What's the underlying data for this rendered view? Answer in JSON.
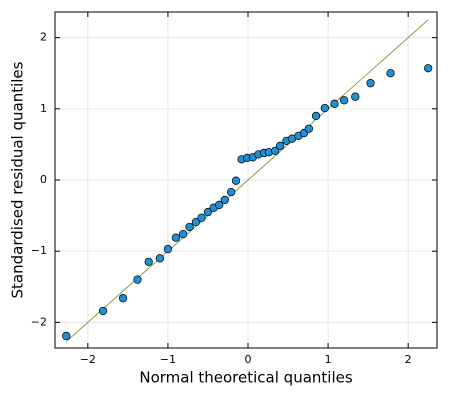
{
  "chart_data": {
    "type": "scatter",
    "xlabel": "Normal theoretical quantiles",
    "ylabel": "Standardised residual quantiles",
    "x": [
      -2.27,
      -1.81,
      -1.56,
      -1.38,
      -1.24,
      -1.1,
      -1.0,
      -0.9,
      -0.81,
      -0.73,
      -0.65,
      -0.58,
      -0.5,
      -0.43,
      -0.36,
      -0.29,
      -0.21,
      -0.15,
      -0.08,
      -0.01,
      0.06,
      0.13,
      0.2,
      0.26,
      0.34,
      0.4,
      0.48,
      0.55,
      0.63,
      0.7,
      0.76,
      0.85,
      0.96,
      1.08,
      1.2,
      1.34,
      1.53,
      1.78,
      2.25
    ],
    "values": [
      -2.19,
      -1.84,
      -1.66,
      -1.4,
      -1.15,
      -1.1,
      -0.97,
      -0.81,
      -0.76,
      -0.66,
      -0.59,
      -0.53,
      -0.45,
      -0.39,
      -0.35,
      -0.28,
      -0.17,
      -0.01,
      0.29,
      0.31,
      0.32,
      0.36,
      0.38,
      0.39,
      0.41,
      0.48,
      0.55,
      0.58,
      0.62,
      0.66,
      0.72,
      0.9,
      1.01,
      1.07,
      1.12,
      1.17,
      1.36,
      1.5,
      1.57
    ],
    "color": "#1f8fd6",
    "ref_line": {
      "x": [
        -2.27,
        2.25
      ],
      "values": [
        -2.27,
        2.25
      ],
      "color": "#6b8e23"
    },
    "xlim": [
      -2.41,
      2.36
    ],
    "ylim": [
      -2.36,
      2.36
    ],
    "xticks": [
      {
        "value": -2,
        "label": "−2"
      },
      {
        "value": -1,
        "label": "−1"
      },
      0,
      1,
      2
    ],
    "yticks": [
      {
        "value": -2,
        "label": "−2"
      },
      {
        "value": -1,
        "label": "−1"
      },
      0,
      1,
      2
    ],
    "grid": true
  }
}
